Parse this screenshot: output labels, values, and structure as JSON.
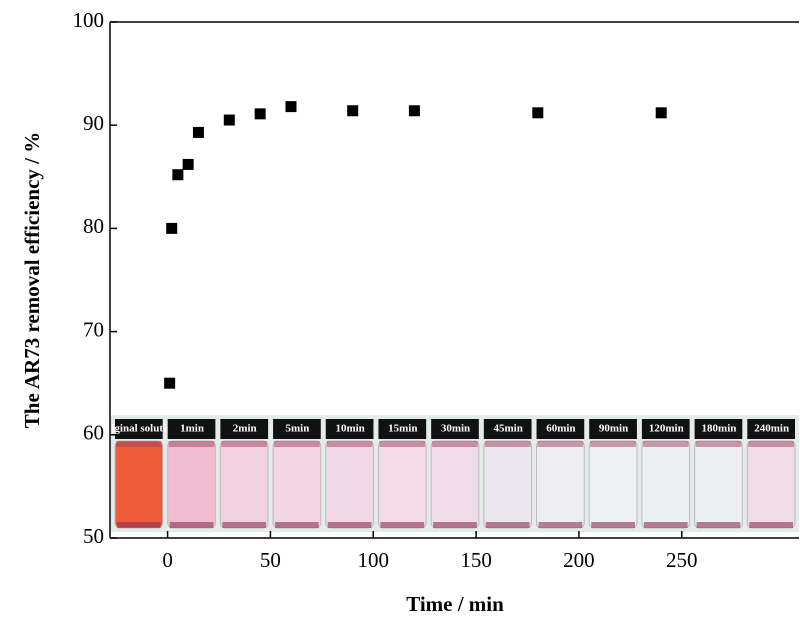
{
  "chart_data": {
    "type": "scatter",
    "x_label": "Time / min",
    "y_label": "The AR73 removal efficiency / %",
    "x": [
      1,
      2,
      5,
      10,
      15,
      30,
      45,
      60,
      90,
      120,
      180,
      240
    ],
    "values": [
      65,
      80,
      85.2,
      86.2,
      89.3,
      90.5,
      91.1,
      91.8,
      91.4,
      91.4,
      91.2,
      91.2
    ],
    "color": "#000000",
    "xlim": [
      -28,
      307
    ],
    "ylim": [
      50,
      100
    ],
    "xticks": [
      0,
      50,
      100,
      150,
      200,
      250
    ],
    "yticks": [
      50,
      60,
      70,
      80,
      90,
      100
    ],
    "inset_labels": [
      "original solution",
      "1min",
      "2min",
      "5min",
      "10min",
      "15min",
      "30min",
      "45min",
      "60min",
      "90min",
      "120min",
      "180min",
      "240min"
    ]
  }
}
